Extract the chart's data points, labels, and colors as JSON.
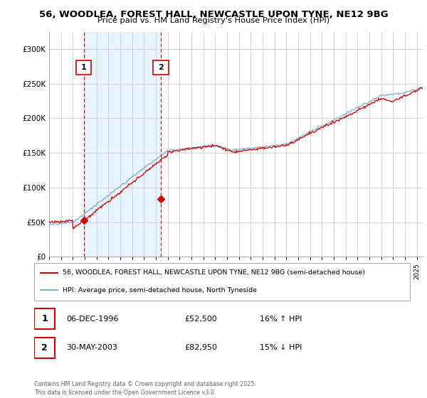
{
  "title_line1": "56, WOODLEA, FOREST HALL, NEWCASTLE UPON TYNE, NE12 9BG",
  "title_line2": "Price paid vs. HM Land Registry's House Price Index (HPI)",
  "legend_entry1": "56, WOODLEA, FOREST HALL, NEWCASTLE UPON TYNE, NE12 9BG (semi-detached house)",
  "legend_entry2": "HPI: Average price, semi-detached house, North Tyneside",
  "footer": "Contains HM Land Registry data © Crown copyright and database right 2025.\nThis data is licensed under the Open Government Licence v3.0.",
  "hpi_color": "#7ab0d4",
  "price_color": "#cc0000",
  "ylim": [
    0,
    325000
  ],
  "yticks": [
    0,
    50000,
    100000,
    150000,
    200000,
    250000,
    300000
  ],
  "ytick_labels": [
    "£0",
    "£50K",
    "£100K",
    "£150K",
    "£200K",
    "£250K",
    "£300K"
  ],
  "transaction1_x": 1996.92,
  "transaction1_y": 52500,
  "transaction2_x": 2003.41,
  "transaction2_y": 82950,
  "xmin": 1994.0,
  "xmax": 2025.5,
  "transaction1_date": "06-DEC-1996",
  "transaction1_price": "£52,500",
  "transaction1_hpi": "16% ↑ HPI",
  "transaction2_date": "30-MAY-2003",
  "transaction2_price": "£82,950",
  "transaction2_hpi": "15% ↓ HPI"
}
